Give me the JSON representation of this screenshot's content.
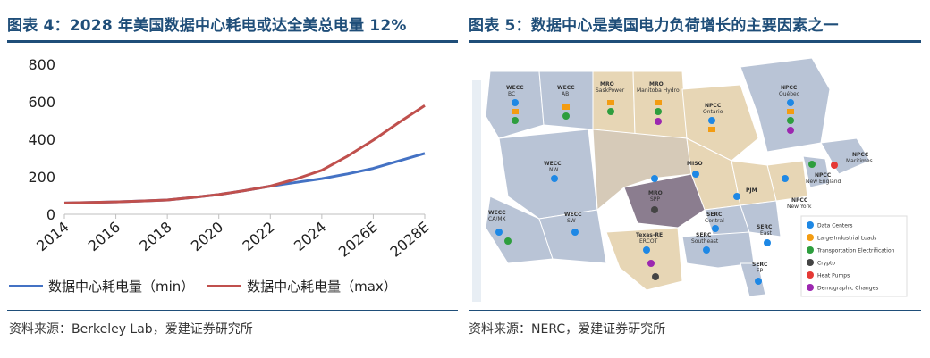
{
  "left": {
    "title": "图表 4：2028 年美国数据中心耗电或达全美总电量 12%",
    "source": "资料来源：Berkeley Lab，爱建证券研究所"
  },
  "right": {
    "title": "图表 5：数据中心是美国电力负荷增长的主要因素之一",
    "source": "资料来源：NERC，爱建证券研究所",
    "regions": [
      {
        "code": "WECC",
        "name": "BC"
      },
      {
        "code": "WECC",
        "name": "AB"
      },
      {
        "code": "MRO",
        "name": "SaskPower"
      },
      {
        "code": "MRO",
        "name": "Manitoba Hydro"
      },
      {
        "code": "NPCC",
        "name": "Ontario"
      },
      {
        "code": "NPCC",
        "name": "Québec"
      },
      {
        "code": "NPCC",
        "name": "Maritimes"
      },
      {
        "code": "NPCC",
        "name": "New England"
      },
      {
        "code": "NPCC",
        "name": "New York"
      },
      {
        "code": "WECC",
        "name": "NW"
      },
      {
        "code": "MISO",
        "name": ""
      },
      {
        "code": "PJM",
        "name": ""
      },
      {
        "code": "MRO",
        "name": "SPP"
      },
      {
        "code": "WECC",
        "name": "CA/MX"
      },
      {
        "code": "WECC",
        "name": "SW"
      },
      {
        "code": "Texas-RE",
        "name": "ERCOT"
      },
      {
        "code": "SERC",
        "name": "Central"
      },
      {
        "code": "SERC",
        "name": "Southeast"
      },
      {
        "code": "SERC",
        "name": "East"
      },
      {
        "code": "SERC",
        "name": "FP"
      }
    ],
    "legend": [
      {
        "label": "Data Centers",
        "color": "#1e88e5",
        "icon": "data-center-icon"
      },
      {
        "label": "Large Industrial Loads",
        "color": "#f39c12",
        "icon": "factory-icon"
      },
      {
        "label": "Transportation Electrification",
        "color": "#2e9e3e",
        "icon": "ev-car-icon"
      },
      {
        "label": "Crypto",
        "color": "#444444",
        "icon": "bitcoin-icon"
      },
      {
        "label": "Heat Pumps",
        "color": "#e53935",
        "icon": "heat-pump-icon"
      },
      {
        "label": "Demographic Changes",
        "color": "#9c27b0",
        "icon": "people-icon"
      }
    ]
  },
  "chart_data": {
    "type": "line",
    "title": "",
    "xlabel": "",
    "ylabel": "",
    "categories": [
      "2014",
      "2016",
      "2018",
      "2020",
      "2022",
      "2024",
      "2026E",
      "2028E"
    ],
    "x": [
      2014,
      2015,
      2016,
      2017,
      2018,
      2019,
      2020,
      2021,
      2022,
      2023,
      2024,
      2025,
      2026,
      2027,
      2028
    ],
    "ylim": [
      0,
      800
    ],
    "yticks": [
      0,
      200,
      400,
      600,
      800
    ],
    "grid": false,
    "legend_position": "bottom",
    "series": [
      {
        "name": "数据中心耗电量（min）",
        "color": "#4472c4",
        "values": [
          60,
          63,
          66,
          71,
          76,
          90,
          105,
          126,
          150,
          170,
          190,
          215,
          245,
          285,
          325
        ]
      },
      {
        "name": "数据中心耗电量（max）",
        "color": "#c0504d",
        "values": [
          60,
          63,
          66,
          71,
          76,
          90,
          105,
          126,
          150,
          188,
          235,
          310,
          395,
          490,
          580
        ]
      }
    ]
  }
}
